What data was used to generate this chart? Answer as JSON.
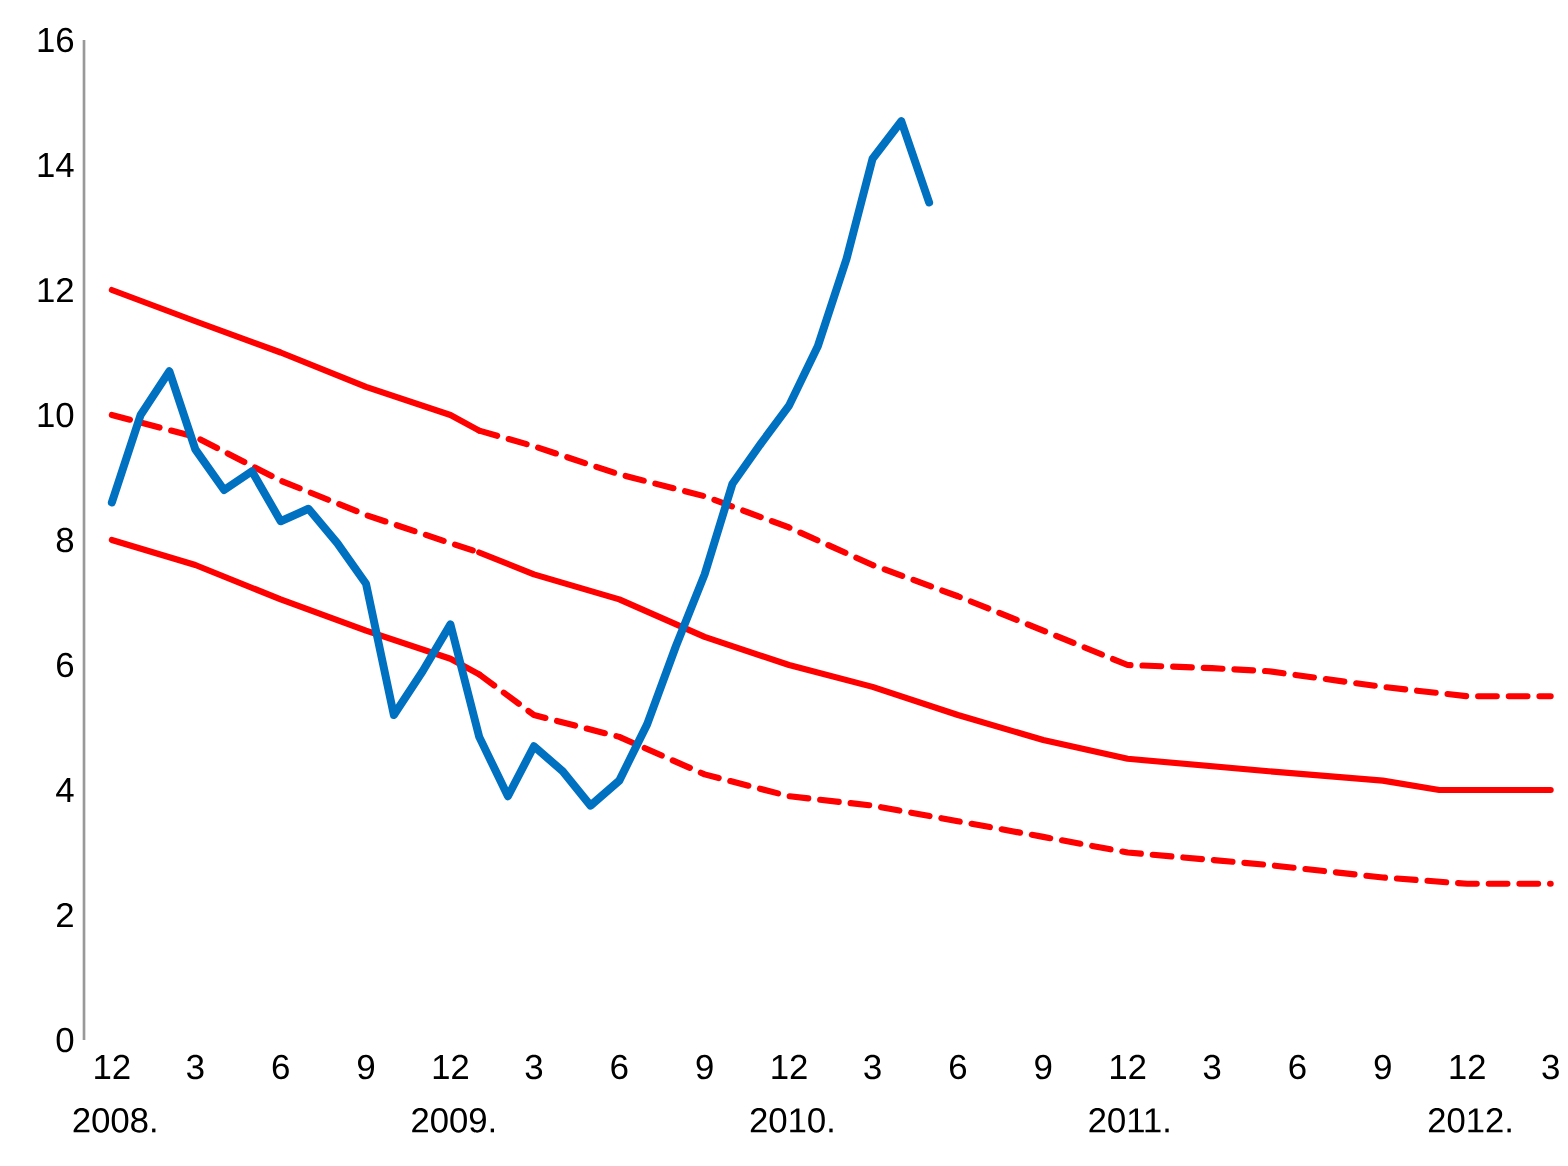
{
  "chart_data": {
    "type": "line",
    "xlim": [
      "2008-11",
      "2013-03"
    ],
    "ylim": [
      0,
      16
    ],
    "xticks": [
      {
        "value": "2008-12",
        "label": "12 2008."
      },
      {
        "value": "2009-03",
        "label": "3"
      },
      {
        "value": "2009-06",
        "label": "6"
      },
      {
        "value": "2009-09",
        "label": "9"
      },
      {
        "value": "2009-12",
        "label": "12 2009."
      },
      {
        "value": "2010-03",
        "label": "3"
      },
      {
        "value": "2010-06",
        "label": "6"
      },
      {
        "value": "2010-09",
        "label": "9"
      },
      {
        "value": "2010-12",
        "label": "12 2010."
      },
      {
        "value": "2011-03",
        "label": "3"
      },
      {
        "value": "2011-06",
        "label": "6"
      },
      {
        "value": "2011-09",
        "label": "9"
      },
      {
        "value": "2011-12",
        "label": "12 2011."
      },
      {
        "value": "2012-03",
        "label": "3"
      },
      {
        "value": "2012-06",
        "label": "6"
      },
      {
        "value": "2012-09",
        "label": "9"
      },
      {
        "value": "2012-12",
        "label": "12 2012."
      },
      {
        "value": "2013-03",
        "label": "3"
      }
    ],
    "yticks": [
      0,
      2,
      4,
      6,
      8,
      10,
      12,
      14,
      16
    ],
    "grid": false,
    "legend": false,
    "series": [
      {
        "color": "#ff0000",
        "line_style": "solid",
        "x": [
          "2008-12",
          "2009-03",
          "2009-06",
          "2009-09",
          "2009-12",
          "2010-01"
        ],
        "values": [
          12.0,
          11.5,
          11.0,
          10.45,
          10.0,
          9.75
        ]
      },
      {
        "color": "#ff0000",
        "line_style": "dashed",
        "x": [
          "2010-01",
          "2010-03",
          "2010-06",
          "2010-09",
          "2010-12",
          "2011-03",
          "2011-06",
          "2011-09",
          "2011-12",
          "2012-03",
          "2012-05",
          "2012-09",
          "2012-12",
          "2013-03"
        ],
        "values": [
          9.75,
          9.5,
          9.05,
          8.7,
          8.2,
          7.6,
          7.1,
          6.55,
          6.0,
          5.95,
          5.9,
          5.65,
          5.5,
          5.5
        ]
      },
      {
        "color": "#ff0000",
        "line_style": "dashed",
        "x": [
          "2008-12",
          "2009-03",
          "2009-06",
          "2009-09",
          "2009-12",
          "2010-01"
        ],
        "values": [
          10.0,
          9.65,
          8.95,
          8.4,
          7.95,
          7.8
        ]
      },
      {
        "color": "#ff0000",
        "line_style": "solid",
        "x": [
          "2010-01",
          "2010-03",
          "2010-06",
          "2010-09",
          "2010-12",
          "2011-03",
          "2011-06",
          "2011-09",
          "2011-12",
          "2012-05",
          "2012-09",
          "2012-11",
          "2013-03"
        ],
        "values": [
          7.8,
          7.45,
          7.05,
          6.45,
          6.0,
          5.65,
          5.2,
          4.8,
          4.5,
          4.3,
          4.15,
          4.0,
          4.0
        ]
      },
      {
        "color": "#ff0000",
        "line_style": "solid",
        "x": [
          "2008-12",
          "2009-03",
          "2009-06",
          "2009-09",
          "2009-12",
          "2010-01"
        ],
        "values": [
          8.0,
          7.6,
          7.05,
          6.55,
          6.1,
          5.85
        ]
      },
      {
        "color": "#ff0000",
        "line_style": "dashed",
        "x": [
          "2010-01",
          "2010-03",
          "2010-06",
          "2010-09",
          "2010-12",
          "2011-03",
          "2011-06",
          "2011-09",
          "2011-12",
          "2012-05",
          "2012-09",
          "2012-12",
          "2013-03"
        ],
        "values": [
          5.85,
          5.2,
          4.85,
          4.25,
          3.9,
          3.75,
          3.5,
          3.25,
          3.0,
          2.8,
          2.6,
          2.5,
          2.5
        ]
      },
      {
        "color": "#0070c0",
        "line_style": "solid",
        "x": [
          "2008-12",
          "2009-01",
          "2009-02",
          "2009-03",
          "2009-04",
          "2009-05",
          "2009-06",
          "2009-07",
          "2009-08",
          "2009-09",
          "2009-10",
          "2009-11",
          "2009-12",
          "2010-01",
          "2010-02",
          "2010-03",
          "2010-04",
          "2010-05",
          "2010-06",
          "2010-07",
          "2010-08",
          "2010-09",
          "2010-10",
          "2010-11",
          "2010-12",
          "2011-01",
          "2011-02",
          "2011-03",
          "2011-04",
          "2011-05"
        ],
        "values": [
          8.6,
          10.0,
          10.7,
          9.45,
          8.8,
          9.1,
          8.3,
          8.5,
          7.95,
          7.3,
          5.2,
          5.9,
          6.65,
          4.85,
          3.9,
          4.7,
          4.3,
          3.75,
          4.15,
          5.05,
          6.3,
          7.45,
          8.9,
          9.55,
          10.15,
          11.1,
          12.5,
          14.1,
          14.7,
          13.4
        ]
      }
    ]
  }
}
